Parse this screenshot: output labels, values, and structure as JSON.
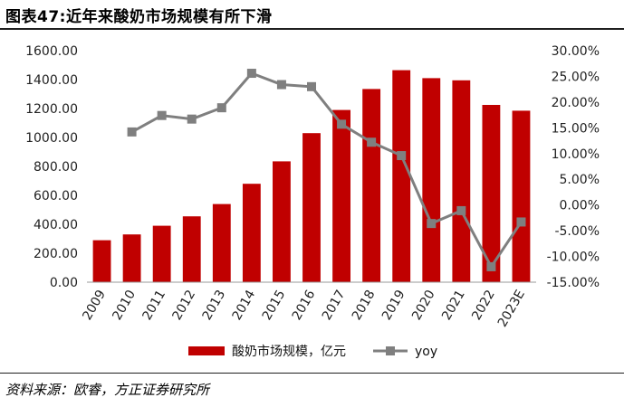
{
  "title": "图表47:近年来酸奶市场规模有所下滑",
  "source": "资料来源：欧睿，方正证券研究所",
  "colors": {
    "bar": "#c00000",
    "line": "#7f7f7f",
    "axis": "#999999"
  },
  "chart_data": {
    "type": "bar+line",
    "categories": [
      "2009",
      "2010",
      "2011",
      "2012",
      "2013",
      "2014",
      "2015",
      "2016",
      "2017",
      "2018",
      "2019",
      "2020",
      "2021",
      "2022",
      "2023E"
    ],
    "series": [
      {
        "name": "酸奶市场规模，亿元",
        "type": "bar",
        "axis": "left",
        "values": [
          290,
          330,
          390,
          455,
          540,
          680,
          835,
          1030,
          1190,
          1335,
          1465,
          1410,
          1395,
          1225,
          1185
        ]
      },
      {
        "name": "yoy",
        "type": "line",
        "axis": "right",
        "values": [
          null,
          14.2,
          17.4,
          16.7,
          18.9,
          25.6,
          23.4,
          23.0,
          15.7,
          12.2,
          9.6,
          -3.6,
          -1.1,
          -12.0,
          -3.3
        ]
      }
    ],
    "left_axis": {
      "min": 0,
      "max": 1600,
      "step": 200,
      "tick_labels": [
        "0.00",
        "200.00",
        "400.00",
        "600.00",
        "800.00",
        "1000.00",
        "1200.00",
        "1400.00",
        "1600.00"
      ]
    },
    "right_axis": {
      "min": -15,
      "max": 30,
      "step": 5,
      "tick_labels": [
        "-15.00%",
        "-10.00%",
        "-5.00%",
        "0.00%",
        "5.00%",
        "10.00%",
        "15.00%",
        "20.00%",
        "25.00%",
        "30.00%"
      ]
    },
    "legend": [
      "酸奶市场规模，亿元",
      "yoy"
    ],
    "legend_position": "bottom"
  }
}
